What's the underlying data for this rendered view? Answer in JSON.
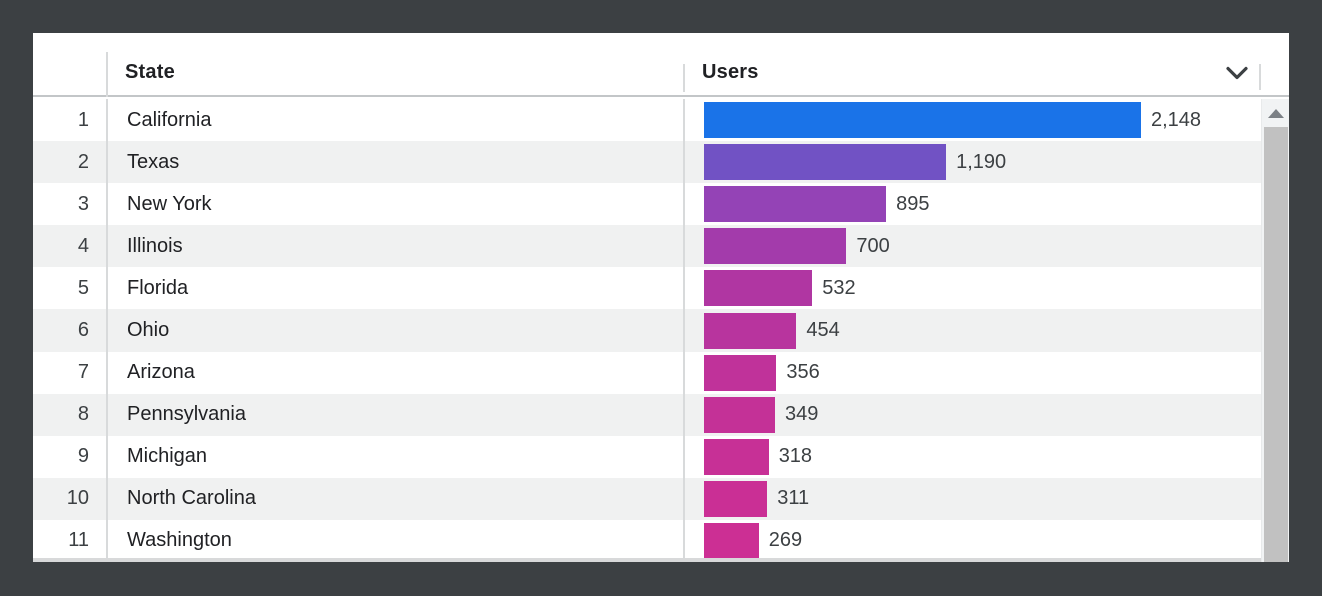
{
  "chart_data": {
    "type": "bar",
    "orientation": "horizontal",
    "categories": [
      "California",
      "Texas",
      "New York",
      "Illinois",
      "Florida",
      "Ohio",
      "Arizona",
      "Pennsylvania",
      "Michigan",
      "North Carolina",
      "Washington"
    ],
    "values": [
      2148,
      1190,
      895,
      700,
      532,
      454,
      356,
      349,
      318,
      311,
      269
    ],
    "value_labels": [
      "2,148",
      "1,190",
      "895",
      "700",
      "532",
      "454",
      "356",
      "349",
      "318",
      "311",
      "269"
    ],
    "ranks": [
      "1",
      "2",
      "3",
      "4",
      "5",
      "6",
      "7",
      "8",
      "9",
      "10",
      "11"
    ],
    "bar_colors": [
      "#1a73e8",
      "#7152c4",
      "#9443b6",
      "#a33bab",
      "#b036a2",
      "#b8349e",
      "#c0329a",
      "#c43197",
      "#c73096",
      "#ca2f95",
      "#cc2f94"
    ],
    "xlabel": "Users",
    "ylabel": "State",
    "xlim": [
      0,
      2148
    ],
    "grid": false,
    "legend": false
  },
  "header": {
    "state_label": "State",
    "users_label": "Users",
    "sort_icon": "chevron-down"
  },
  "scrollbar": {
    "up_arrow_icon": "triangle-up"
  },
  "colors": {
    "frame": "#3c4043",
    "row_stripe": "#f0f1f1",
    "divider": "#d8dadb",
    "header_underline": "#c3c6c8",
    "scroll_thumb": "#c1c1c1",
    "scroll_track": "#f1f3f4",
    "text_primary": "#202124",
    "text_secondary": "#3c4043",
    "bar_max": "#1a73e8",
    "bar_min": "#cc2f94"
  }
}
